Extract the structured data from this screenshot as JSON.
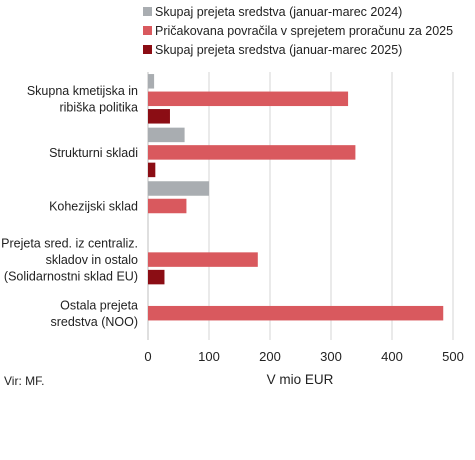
{
  "chart_data": {
    "type": "bar",
    "orientation": "horizontal",
    "categories": [
      [
        "Skupna kmetijska in",
        "ribiška politika"
      ],
      [
        "Strukturni skladi"
      ],
      [
        "Kohezijski sklad"
      ],
      [
        "Prejeta sred. iz centraliz.",
        "skladov in ostalo",
        "(Solidarnostni sklad EU)"
      ],
      [
        "Ostala prejeta",
        "sredstva (NOO)"
      ]
    ],
    "series": [
      {
        "name": "Skupaj prejeta sredstva (januar-marec 2024)",
        "color": "#a9adb1",
        "values": [
          10,
          60,
          100,
          0,
          0
        ]
      },
      {
        "name": "Pričakovana povračila v sprejetem proračunu za 2025",
        "color": "#d9595e",
        "values": [
          328,
          340,
          63,
          180,
          484
        ]
      },
      {
        "name": "Skupaj prejeta sredstva (januar-marec 2025)",
        "color": "#8b0d14",
        "values": [
          36,
          12,
          0,
          27,
          0
        ]
      }
    ],
    "xlabel": "V mio EUR",
    "xlim": [
      0,
      500
    ],
    "xticks": [
      0,
      100,
      200,
      300,
      400,
      500
    ],
    "grid": true,
    "legend_position": "top"
  },
  "source_note": "Vir: MF."
}
